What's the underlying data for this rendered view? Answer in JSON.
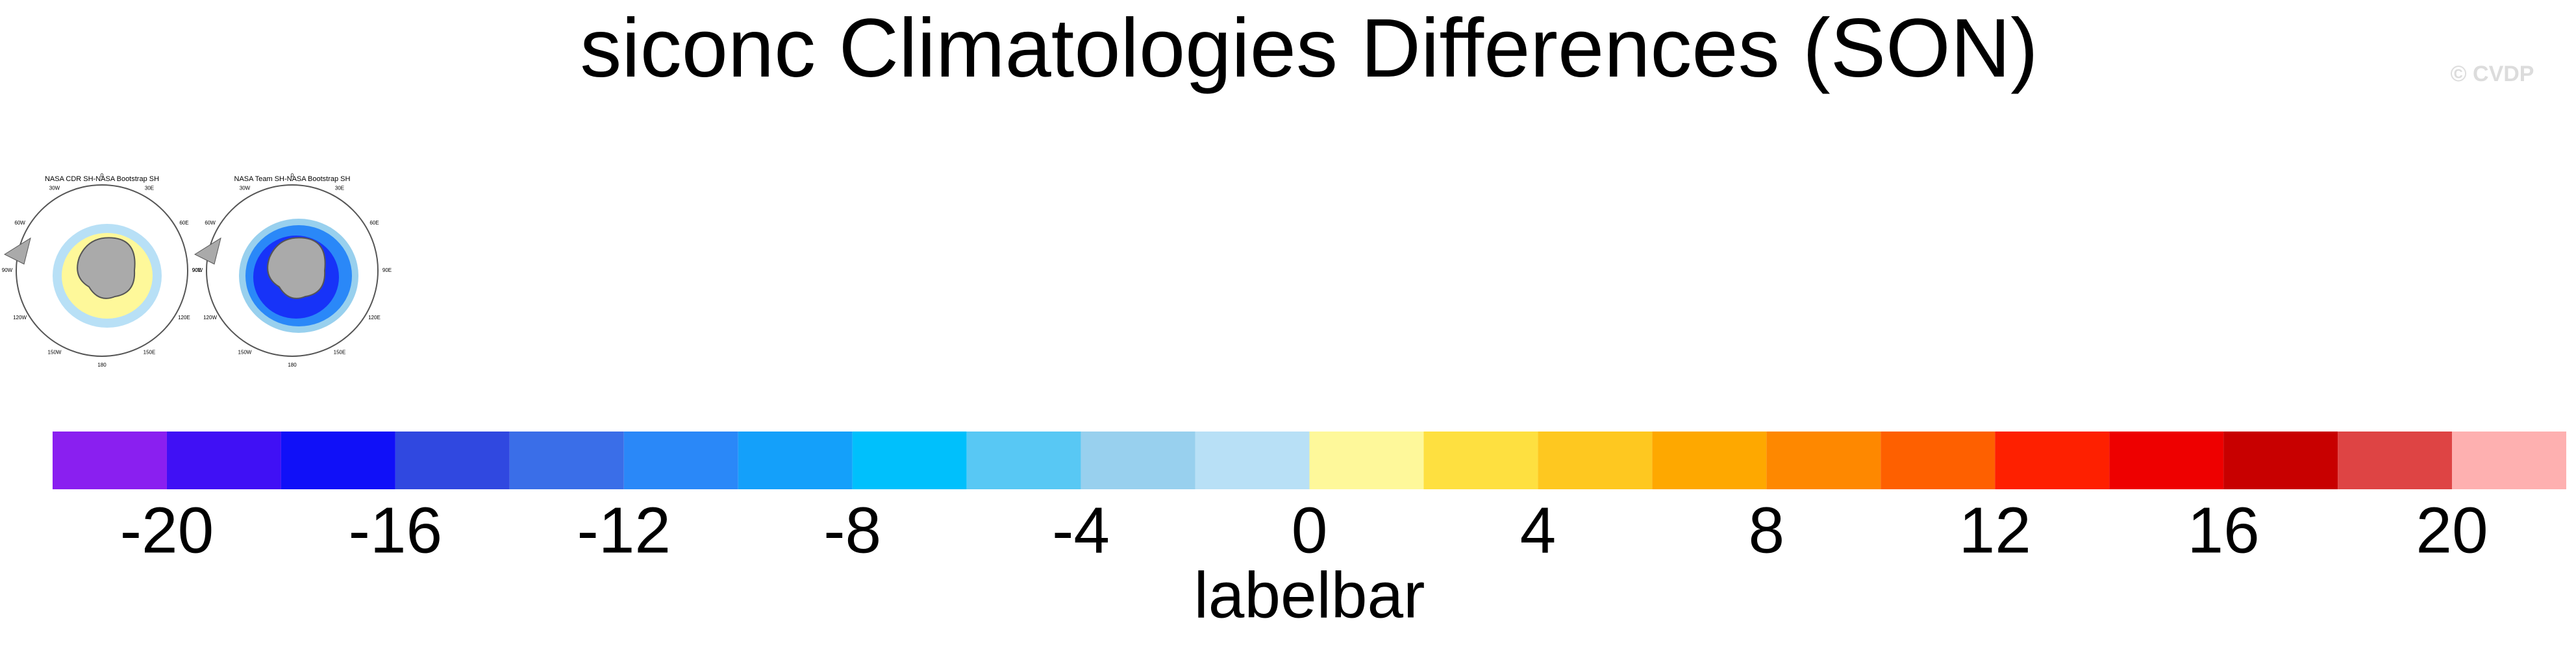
{
  "chart_data": {
    "type": "colorbar",
    "title": "siconc Climatologies Differences (SON)",
    "watermark": "© CVDP",
    "panels": [
      {
        "title": "NASA CDR SH-NASA Bootstrap SH"
      },
      {
        "title": "NASA Team SH-NASA Bootstrap SH"
      }
    ],
    "lon_labels": [
      "0",
      "30E",
      "60E",
      "90E",
      "120E",
      "150E",
      "180",
      "150W",
      "120W",
      "90W",
      "60W",
      "30W"
    ],
    "xlabel": "labelbar",
    "xlim": [
      -22,
      22
    ],
    "levels": [
      -20,
      -18,
      -16,
      -14,
      -12,
      -10,
      -8,
      -6,
      -4,
      -2,
      0,
      2,
      4,
      6,
      8,
      10,
      12,
      14,
      16,
      18,
      20
    ],
    "colors": [
      "#8a1ff0",
      "#4010f5",
      "#1010f8",
      "#3048e0",
      "#3a6ee8",
      "#2a88f8",
      "#14a0fa",
      "#00c0fc",
      "#58c8f4",
      "#98d0ee",
      "#b8e0f6",
      "#fef89a",
      "#fee040",
      "#fec820",
      "#fea800",
      "#fe8800",
      "#fe6000",
      "#fe2000",
      "#ee0000",
      "#c80000",
      "#de4444",
      "#feb0b0"
    ],
    "xticks": [
      -20,
      -16,
      -12,
      -8,
      -4,
      0,
      4,
      8,
      12,
      16,
      20
    ]
  }
}
